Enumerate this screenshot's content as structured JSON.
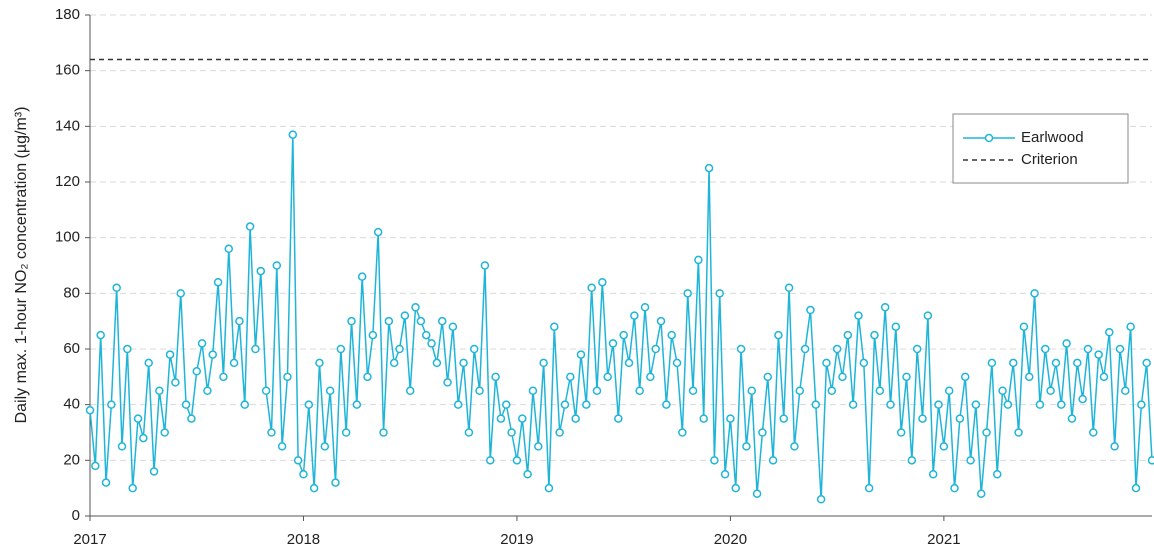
{
  "chart_data": {
    "type": "line",
    "y_label": "Daily max. 1-hour NO₂ concentration (µg/m³)",
    "x": [
      2017,
      2017.025,
      2017.05,
      2017.075,
      2017.1,
      2017.125,
      2017.15,
      2017.175,
      2017.2,
      2017.225,
      2017.25,
      2017.275,
      2017.3,
      2017.325,
      2017.35,
      2017.375,
      2017.4,
      2017.425,
      2017.45,
      2017.475,
      2017.5,
      2017.525,
      2017.55,
      2017.575,
      2017.6,
      2017.625,
      2017.65,
      2017.675,
      2017.7,
      2017.725,
      2017.75,
      2017.775,
      2017.8,
      2017.825,
      2017.85,
      2017.875,
      2017.9,
      2017.925,
      2017.95,
      2017.975,
      2018,
      2018.025,
      2018.05,
      2018.075,
      2018.1,
      2018.125,
      2018.15,
      2018.175,
      2018.2,
      2018.225,
      2018.25,
      2018.275,
      2018.3,
      2018.325,
      2018.35,
      2018.375,
      2018.4,
      2018.425,
      2018.45,
      2018.475,
      2018.5,
      2018.525,
      2018.55,
      2018.575,
      2018.6,
      2018.625,
      2018.65,
      2018.675,
      2018.7,
      2018.725,
      2018.75,
      2018.775,
      2018.8,
      2018.825,
      2018.85,
      2018.875,
      2018.9,
      2018.925,
      2018.95,
      2018.975,
      2019,
      2019.025,
      2019.05,
      2019.075,
      2019.1,
      2019.125,
      2019.15,
      2019.175,
      2019.2,
      2019.225,
      2019.25,
      2019.275,
      2019.3,
      2019.325,
      2019.35,
      2019.375,
      2019.4,
      2019.425,
      2019.45,
      2019.475,
      2019.5,
      2019.525,
      2019.55,
      2019.575,
      2019.6,
      2019.625,
      2019.65,
      2019.675,
      2019.7,
      2019.725,
      2019.75,
      2019.775,
      2019.8,
      2019.825,
      2019.85,
      2019.875,
      2019.9,
      2019.925,
      2019.95,
      2019.975,
      2020,
      2020.025,
      2020.05,
      2020.075,
      2020.1,
      2020.125,
      2020.15,
      2020.175,
      2020.2,
      2020.225,
      2020.25,
      2020.275,
      2020.3,
      2020.325,
      2020.35,
      2020.375,
      2020.4,
      2020.425,
      2020.45,
      2020.475,
      2020.5,
      2020.525,
      2020.55,
      2020.575,
      2020.6,
      2020.625,
      2020.65,
      2020.675,
      2020.7,
      2020.725,
      2020.75,
      2020.775,
      2020.8,
      2020.825,
      2020.85,
      2020.875,
      2020.9,
      2020.925,
      2020.95,
      2020.975,
      2021,
      2021.025,
      2021.05,
      2021.075,
      2021.1,
      2021.125,
      2021.15,
      2021.175,
      2021.2,
      2021.225,
      2021.25,
      2021.275,
      2021.3,
      2021.325,
      2021.35,
      2021.375,
      2021.4,
      2021.425,
      2021.45,
      2021.475,
      2021.5,
      2021.525,
      2021.55,
      2021.575,
      2021.6,
      2021.625,
      2021.65,
      2021.675,
      2021.7,
      2021.725,
      2021.75,
      2021.775,
      2021.8,
      2021.825,
      2021.85,
      2021.875,
      2021.9,
      2021.925,
      2021.95,
      2021.975
    ],
    "series": [
      {
        "name": "Earlwood",
        "color": "#1fb5d9",
        "values": [
          38,
          18,
          65,
          12,
          40,
          82,
          25,
          60,
          10,
          35,
          28,
          55,
          16,
          45,
          30,
          58,
          48,
          80,
          40,
          35,
          52,
          62,
          45,
          58,
          84,
          50,
          96,
          55,
          70,
          40,
          104,
          60,
          88,
          45,
          30,
          90,
          25,
          50,
          137,
          20,
          15,
          40,
          10,
          55,
          25,
          45,
          12,
          60,
          30,
          70,
          40,
          86,
          50,
          65,
          102,
          30,
          70,
          55,
          60,
          72,
          45,
          75,
          70,
          65,
          62,
          55,
          70,
          48,
          68,
          40,
          55,
          30,
          60,
          45,
          90,
          20,
          50,
          35,
          40,
          30,
          20,
          35,
          15,
          45,
          25,
          55,
          10,
          68,
          30,
          40,
          50,
          35,
          58,
          40,
          82,
          45,
          84,
          50,
          62,
          35,
          65,
          55,
          72,
          45,
          75,
          50,
          60,
          70,
          40,
          65,
          55,
          30,
          80,
          45,
          92,
          35,
          125,
          20,
          80,
          15,
          35,
          10,
          60,
          25,
          45,
          8,
          30,
          50,
          20,
          65,
          35,
          82,
          25,
          45,
          60,
          74,
          40,
          6,
          55,
          45,
          60,
          50,
          65,
          40,
          72,
          55,
          10,
          65,
          45,
          75,
          40,
          68,
          30,
          50,
          20,
          60,
          35,
          72,
          15,
          40,
          25,
          45,
          10,
          35,
          50,
          20,
          40,
          8,
          30,
          55,
          15,
          45,
          40,
          55,
          30,
          68,
          50,
          80,
          40,
          60,
          45,
          55,
          40,
          62,
          35,
          55,
          42,
          60,
          30,
          58,
          50,
          66,
          25,
          60,
          45,
          68,
          10,
          40,
          55,
          20
        ]
      }
    ],
    "criterion": {
      "name": "Criterion",
      "value": 164
    },
    "xlim": [
      2017,
      2021.975
    ],
    "xticks": [
      2017,
      2018,
      2019,
      2020,
      2021
    ],
    "ylim": [
      0,
      180
    ],
    "yticks": [
      0,
      20,
      40,
      60,
      80,
      100,
      120,
      140,
      160,
      180
    ],
    "grid": true,
    "legend": "upper right"
  }
}
